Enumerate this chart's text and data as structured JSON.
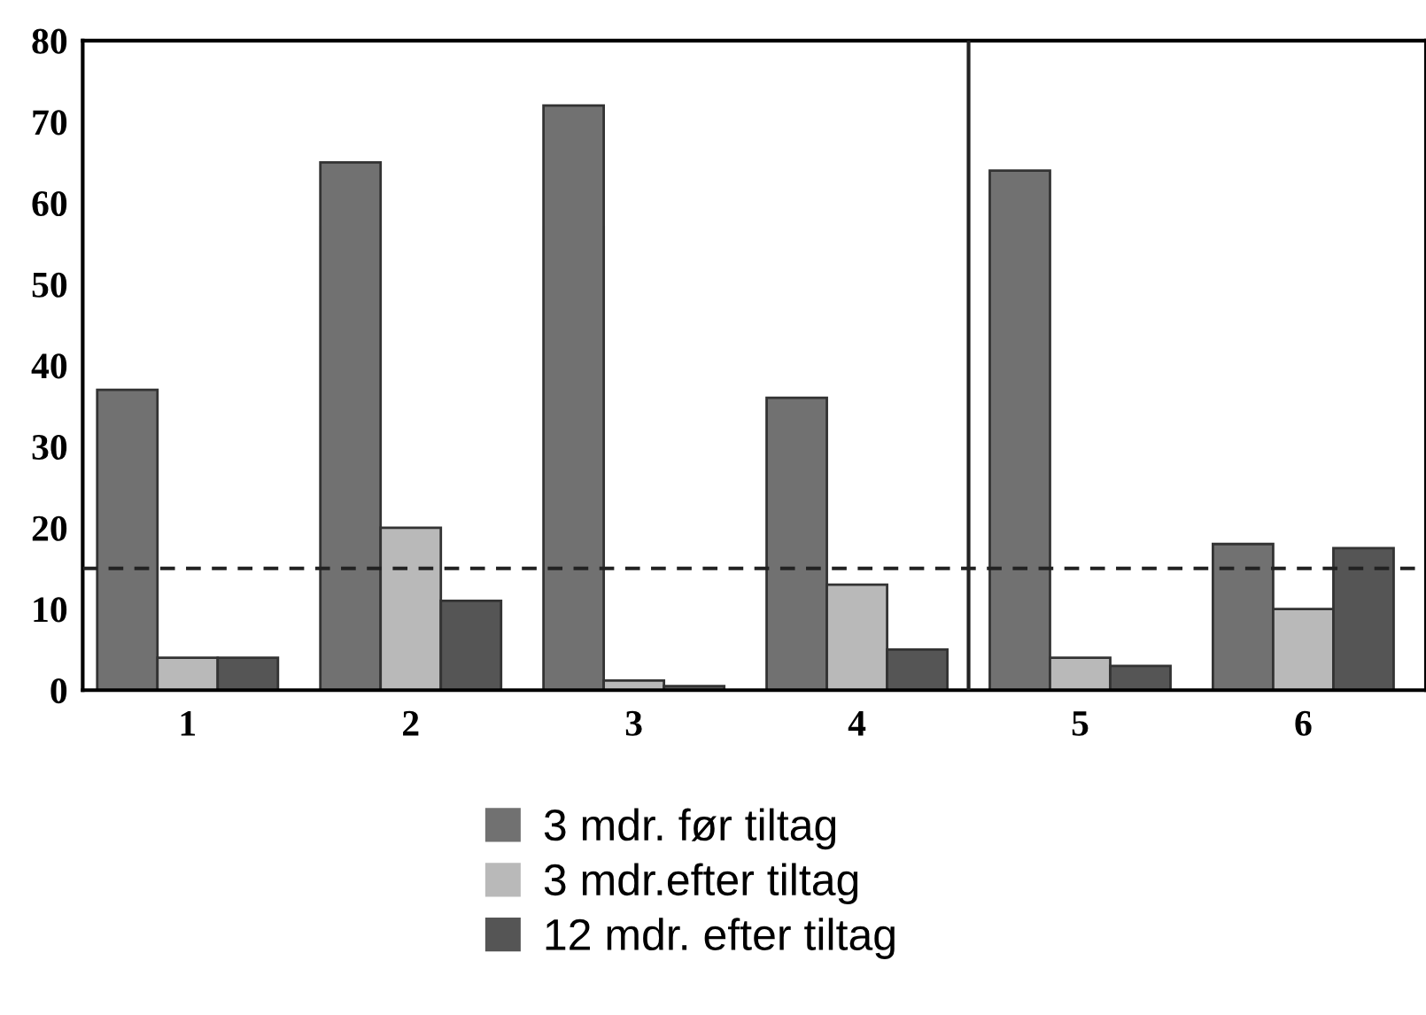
{
  "chart_data": {
    "type": "bar",
    "categories": [
      "1",
      "2",
      "3",
      "4",
      "5",
      "6"
    ],
    "series": [
      {
        "name": "3 mdr. før tiltag",
        "color": "#717171",
        "values": [
          37,
          65,
          72,
          36,
          64,
          18
        ]
      },
      {
        "name": "3 mdr.efter tiltag",
        "color": "#b9b9b9",
        "values": [
          4,
          20,
          1.2,
          13,
          4,
          10
        ]
      },
      {
        "name": "12 mdr. efter tiltag",
        "color": "#555555",
        "values": [
          4,
          11,
          0.5,
          5,
          3,
          17.5
        ]
      }
    ],
    "ylim": [
      0,
      80
    ],
    "yticks": [
      0,
      10,
      20,
      30,
      40,
      50,
      60,
      70,
      80
    ],
    "ref_lines": [
      {
        "axis": "y",
        "value": 15,
        "line_style": "dashed",
        "color": "#222222"
      }
    ],
    "grid": false,
    "legend": "bottom"
  }
}
